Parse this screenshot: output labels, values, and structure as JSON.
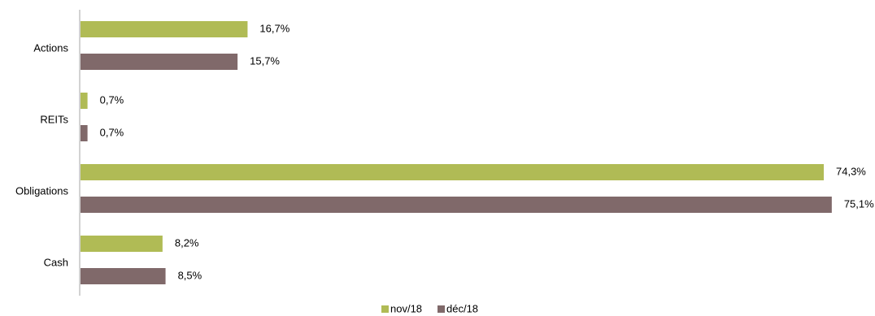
{
  "chart_data": {
    "type": "bar",
    "orientation": "horizontal",
    "categories": [
      "Actions",
      "REITs",
      "Obligations",
      "Cash"
    ],
    "series": [
      {
        "name": "nov/18",
        "color": "#b0bb55",
        "values": [
          16.7,
          0.7,
          74.3,
          8.2
        ],
        "labels": [
          "16,7%",
          "0,7%",
          "74,3%",
          "8,2%"
        ]
      },
      {
        "name": "déc/18",
        "color": "#80696a",
        "values": [
          15.7,
          0.7,
          75.1,
          8.5
        ],
        "labels": [
          "15,7%",
          "0,7%",
          "75,1%",
          "8,5%"
        ]
      }
    ],
    "xlim": [
      0,
      76
    ],
    "grid": false,
    "legend_position": "bottom",
    "axis_color": "#a6a6a6"
  }
}
